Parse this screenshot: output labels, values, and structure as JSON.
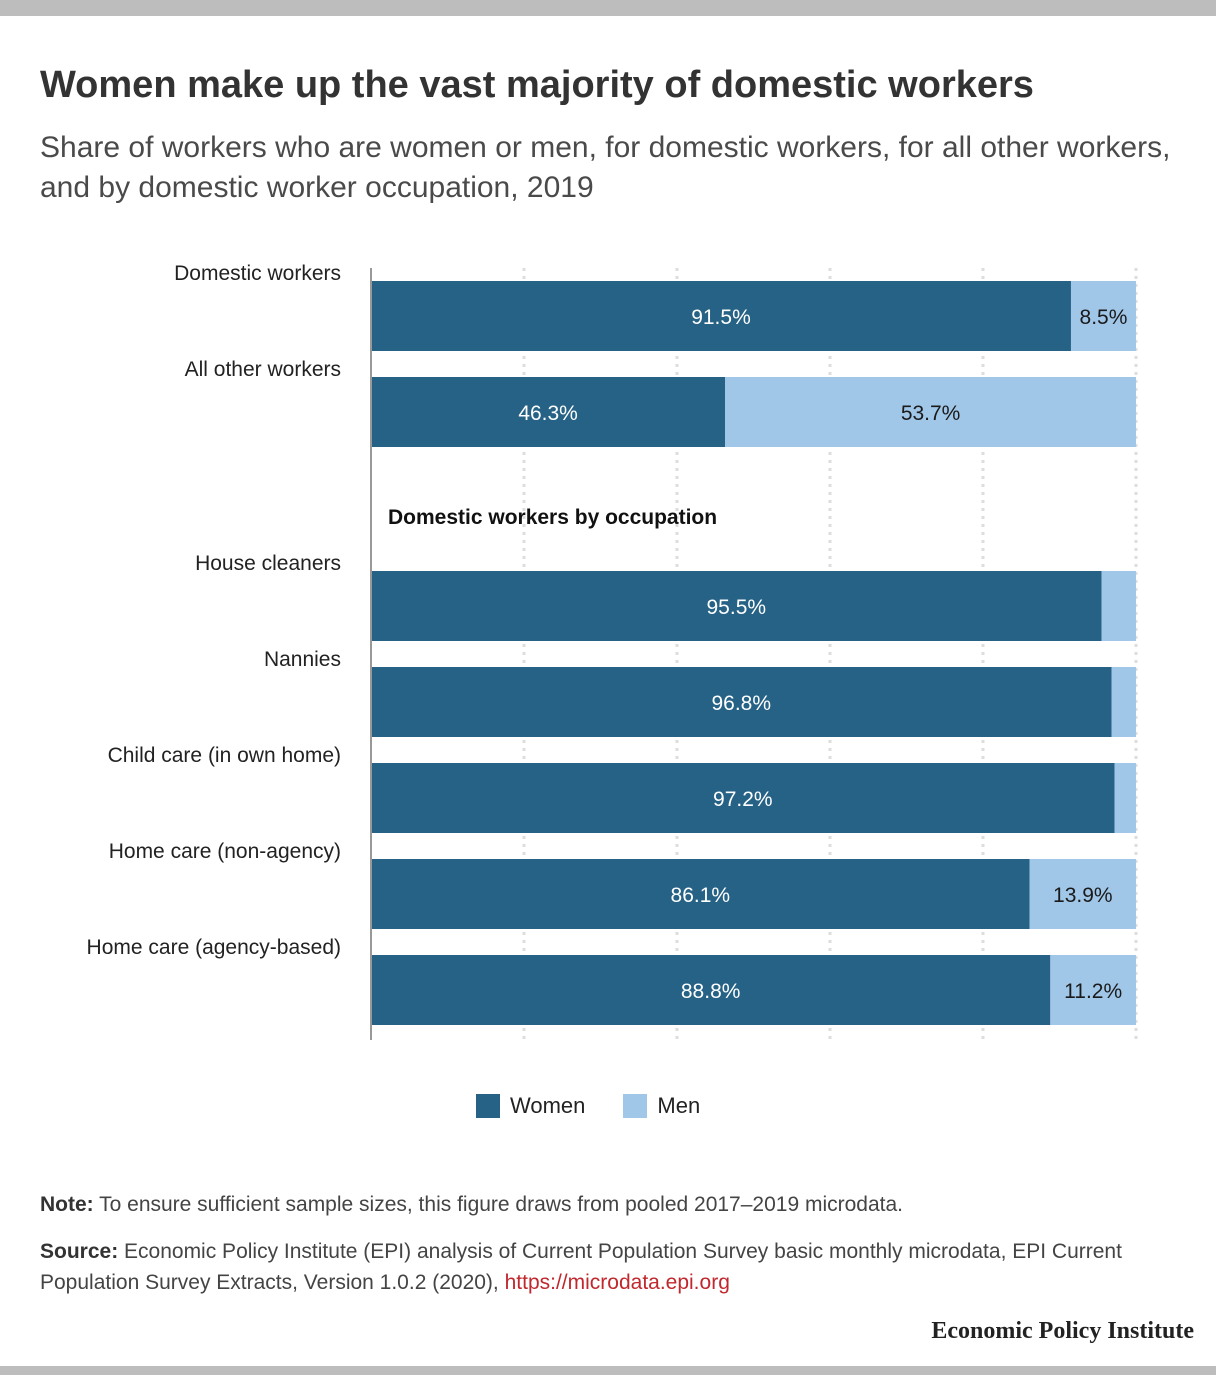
{
  "title": "Women make up the vast majority of domestic workers",
  "subtitle": "Share of workers who are women or men, for domestic workers, for all other workers, and by domestic worker occupation, 2019",
  "colors": {
    "women": "#266285",
    "men": "#a0c6e8",
    "axis": "#999999",
    "grid": "#dddddd"
  },
  "chart_data": {
    "type": "bar",
    "orientation": "horizontal",
    "stacked": true,
    "xlim": [
      0,
      100
    ],
    "grid": true,
    "legend_position": "bottom",
    "categories": [
      "Domestic workers",
      "All other workers",
      "House cleaners",
      "Nannies",
      "Child care (in own home)",
      "Home care (non-agency)",
      "Home care (agency-based)"
    ],
    "section_label": "Domestic workers by occupation",
    "series": [
      {
        "name": "Women",
        "values": [
          91.5,
          46.3,
          95.5,
          96.8,
          97.2,
          86.1,
          88.8
        ],
        "labels": [
          "91.5%",
          "46.3%",
          "95.5%",
          "96.8%",
          "97.2%",
          "86.1%",
          "88.8%"
        ]
      },
      {
        "name": "Men",
        "values": [
          8.5,
          53.7,
          4.5,
          3.2,
          2.8,
          13.9,
          11.2
        ],
        "labels": [
          "8.5%",
          "53.7%",
          "",
          "",
          "",
          "13.9%",
          "11.2%"
        ]
      }
    ]
  },
  "note": {
    "label": "Note:",
    "text": " To ensure sufficient sample sizes, this figure draws from pooled 2017–2019 microdata."
  },
  "source": {
    "label": "Source:",
    "text": " Economic Policy Institute (EPI) analysis of Current Population Survey basic monthly microdata, EPI Current Population Survey Extracts, Version 1.0.2 (2020), ",
    "link": "https://microdata.epi.org"
  },
  "brand": "Economic Policy Institute"
}
